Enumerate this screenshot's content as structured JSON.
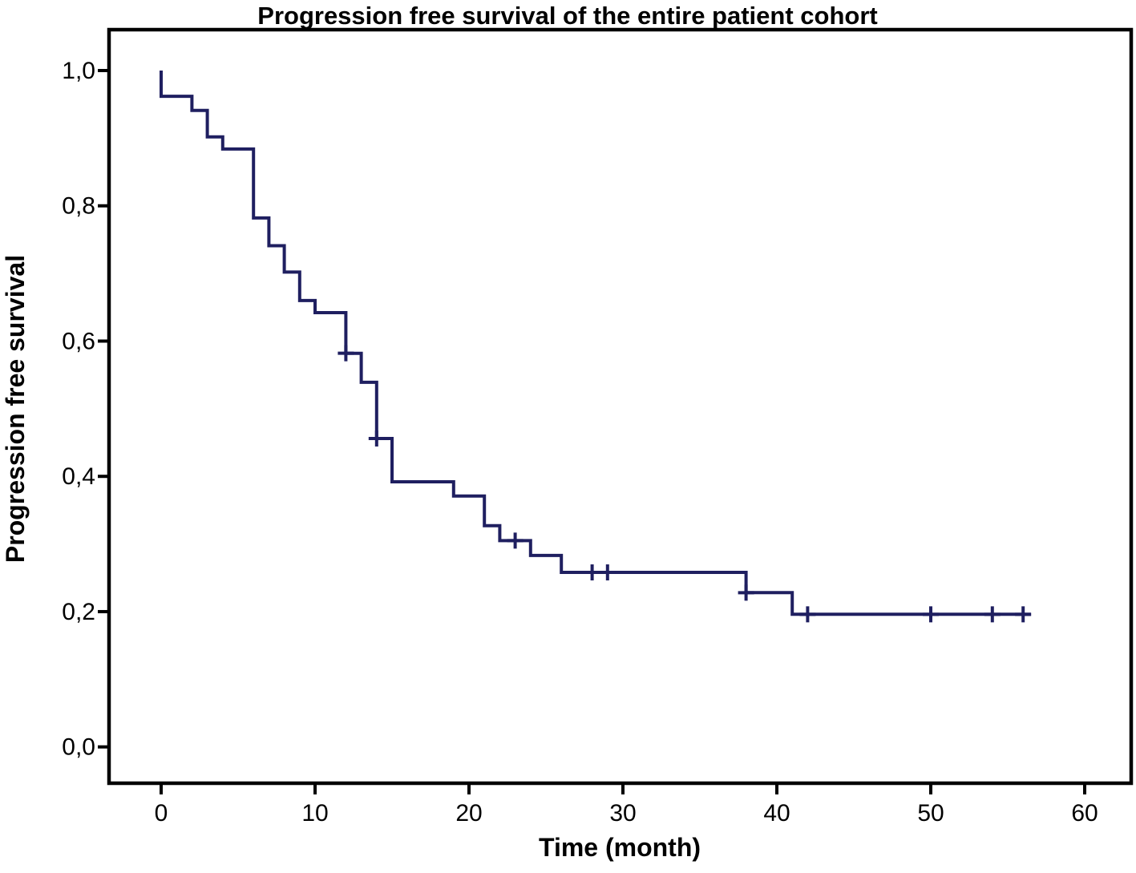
{
  "page": {
    "background_color": "#ffffff"
  },
  "chart_data": {
    "type": "line",
    "subtype": "kaplan-meier-step",
    "title": "Progression free survival of the entire patient cohort",
    "xlabel": "Time (month)",
    "ylabel": "Progression free survival",
    "grid": false,
    "legend": false,
    "curve_color": "#1F1F60",
    "axis_color": "#000000",
    "xlim": [
      -3.4,
      63.0
    ],
    "ylim": [
      -0.054,
      1.06
    ],
    "x_ticks": [
      0,
      10,
      20,
      30,
      40,
      50,
      60
    ],
    "x_tick_labels": [
      "0",
      "10",
      "20",
      "30",
      "40",
      "50",
      "60"
    ],
    "y_ticks": [
      0.0,
      0.2,
      0.4,
      0.6,
      0.8,
      1.0
    ],
    "y_tick_labels": [
      "0,0",
      "0,2",
      "0,4",
      "0,6",
      "0,8",
      "1,0"
    ],
    "series": [
      {
        "points": [
          [
            0,
            1.0
          ],
          [
            0,
            0.962
          ],
          [
            2,
            0.962
          ],
          [
            2,
            0.941
          ],
          [
            3,
            0.941
          ],
          [
            3,
            0.902
          ],
          [
            4,
            0.902
          ],
          [
            4,
            0.884
          ],
          [
            6,
            0.884
          ],
          [
            6,
            0.782
          ],
          [
            7,
            0.782
          ],
          [
            7,
            0.741
          ],
          [
            8,
            0.741
          ],
          [
            8,
            0.702
          ],
          [
            9,
            0.702
          ],
          [
            9,
            0.66
          ],
          [
            10,
            0.66
          ],
          [
            10,
            0.642
          ],
          [
            12,
            0.642
          ],
          [
            12,
            0.582
          ],
          [
            13,
            0.582
          ],
          [
            13,
            0.539
          ],
          [
            14,
            0.539
          ],
          [
            14,
            0.456
          ],
          [
            15,
            0.456
          ],
          [
            15,
            0.392
          ],
          [
            19,
            0.392
          ],
          [
            19,
            0.371
          ],
          [
            21,
            0.371
          ],
          [
            21,
            0.327
          ],
          [
            22,
            0.327
          ],
          [
            22,
            0.305
          ],
          [
            24,
            0.305
          ],
          [
            24,
            0.283
          ],
          [
            26,
            0.283
          ],
          [
            26,
            0.258
          ],
          [
            38,
            0.258
          ],
          [
            38,
            0.228
          ],
          [
            41,
            0.228
          ],
          [
            41,
            0.196
          ],
          [
            56.5,
            0.196
          ]
        ],
        "censor_points": [
          [
            12,
            0.582
          ],
          [
            14,
            0.456
          ],
          [
            23,
            0.305
          ],
          [
            28,
            0.258
          ],
          [
            29,
            0.258
          ],
          [
            38,
            0.228
          ],
          [
            42,
            0.196
          ],
          [
            50,
            0.196
          ],
          [
            54,
            0.196
          ],
          [
            56,
            0.196
          ]
        ]
      }
    ]
  }
}
